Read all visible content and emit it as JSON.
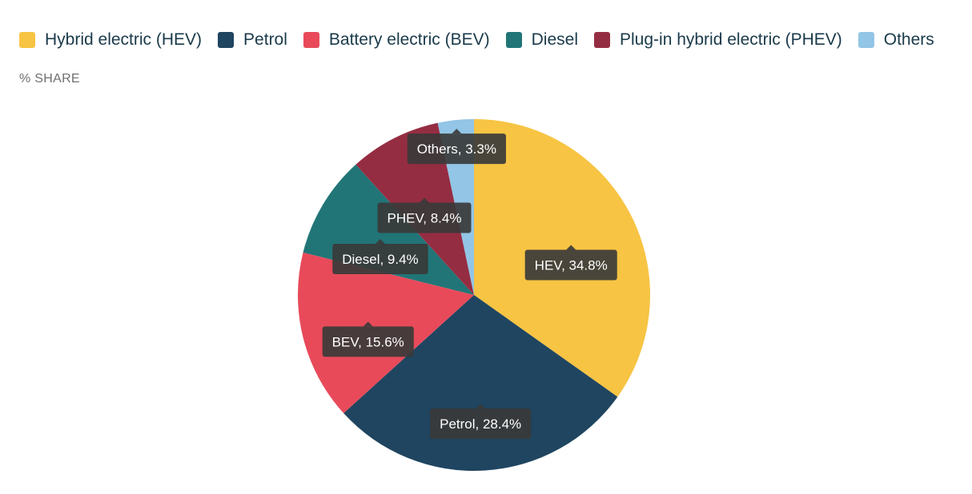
{
  "subtitle": "% SHARE",
  "legend": [
    {
      "label": "Hybrid electric (HEV)",
      "color": "#f7c443"
    },
    {
      "label": "Petrol",
      "color": "#1f4560"
    },
    {
      "label": "Battery electric (BEV)",
      "color": "#e84a5a"
    },
    {
      "label": "Diesel",
      "color": "#217577"
    },
    {
      "label": "Plug-in hybrid electric (PHEV)",
      "color": "#952d42"
    },
    {
      "label": "Others",
      "color": "#92c5e6"
    }
  ],
  "chart_data": {
    "type": "pie",
    "ylabel": "% SHARE",
    "legend_position": "top-left",
    "slices": [
      {
        "name": "Hybrid electric (HEV)",
        "short": "HEV",
        "value": 34.8,
        "label": "HEV, 34.8%",
        "color": "#f7c443"
      },
      {
        "name": "Petrol",
        "short": "Petrol",
        "value": 28.4,
        "label": "Petrol, 28.4%",
        "color": "#1f4560"
      },
      {
        "name": "Battery electric (BEV)",
        "short": "BEV",
        "value": 15.6,
        "label": "BEV, 15.6%",
        "color": "#e84a5a"
      },
      {
        "name": "Diesel",
        "short": "Diesel",
        "value": 9.4,
        "label": "Diesel, 9.4%",
        "color": "#217577"
      },
      {
        "name": "Plug-in hybrid electric (PHEV)",
        "short": "PHEV",
        "value": 8.4,
        "label": "PHEV, 8.4%",
        "color": "#952d42"
      },
      {
        "name": "Others",
        "short": "Others",
        "value": 3.3,
        "label": "Others, 3.3%",
        "color": "#92c5e6"
      }
    ]
  }
}
